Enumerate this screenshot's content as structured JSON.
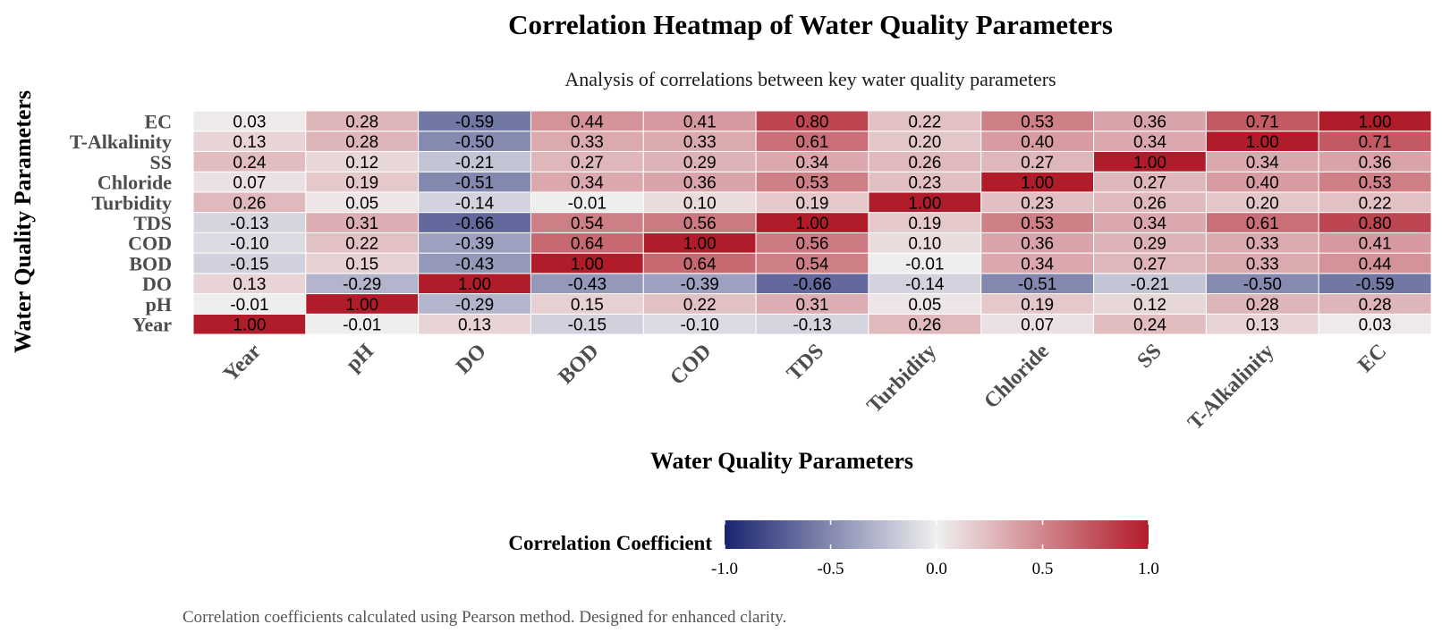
{
  "chart_data": {
    "type": "heatmap",
    "title": "Correlation Heatmap of Water Quality Parameters",
    "subtitle": "Analysis of correlations between key water quality parameters",
    "xlabel": "Water Quality Parameters",
    "ylabel": "Water Quality Parameters",
    "caption": "Correlation coefficients calculated using Pearson method. Designed for enhanced clarity.",
    "x_categories": [
      "Year",
      "pH",
      "DO",
      "BOD",
      "COD",
      "TDS",
      "Turbidity",
      "Chloride",
      "SS",
      "T-Alkalinity",
      "EC"
    ],
    "y_categories": [
      "Year",
      "pH",
      "DO",
      "BOD",
      "COD",
      "TDS",
      "Turbidity",
      "Chloride",
      "SS",
      "T-Alkalinity",
      "EC"
    ],
    "matrix": [
      [
        1.0,
        -0.01,
        0.13,
        -0.15,
        -0.1,
        -0.13,
        0.26,
        0.07,
        0.24,
        0.13,
        0.03
      ],
      [
        -0.01,
        1.0,
        -0.29,
        0.15,
        0.22,
        0.31,
        0.05,
        0.19,
        0.12,
        0.28,
        0.28
      ],
      [
        0.13,
        -0.29,
        1.0,
        -0.43,
        -0.39,
        -0.66,
        -0.14,
        -0.51,
        -0.21,
        -0.5,
        -0.59
      ],
      [
        -0.15,
        0.15,
        -0.43,
        1.0,
        0.64,
        0.54,
        -0.01,
        0.34,
        0.27,
        0.33,
        0.44
      ],
      [
        -0.1,
        0.22,
        -0.39,
        0.64,
        1.0,
        0.56,
        0.1,
        0.36,
        0.29,
        0.33,
        0.41
      ],
      [
        -0.13,
        0.31,
        -0.66,
        0.54,
        0.56,
        1.0,
        0.19,
        0.53,
        0.34,
        0.61,
        0.8
      ],
      [
        0.26,
        0.05,
        -0.14,
        -0.01,
        0.1,
        0.19,
        1.0,
        0.23,
        0.26,
        0.2,
        0.22
      ],
      [
        0.07,
        0.19,
        -0.51,
        0.34,
        0.36,
        0.53,
        0.23,
        1.0,
        0.27,
        0.4,
        0.53
      ],
      [
        0.24,
        0.12,
        -0.21,
        0.27,
        0.29,
        0.34,
        0.26,
        0.27,
        1.0,
        0.34,
        0.36
      ],
      [
        0.13,
        0.28,
        -0.5,
        0.33,
        0.33,
        0.61,
        0.2,
        0.4,
        0.34,
        1.0,
        0.71
      ],
      [
        0.03,
        0.28,
        -0.59,
        0.44,
        0.41,
        0.8,
        0.22,
        0.53,
        0.36,
        0.71,
        1.0
      ]
    ],
    "legend": {
      "title": "Correlation Coefficient",
      "range": [
        -1.0,
        1.0
      ],
      "ticks": [
        -1.0,
        -0.5,
        0.0,
        0.5,
        1.0
      ],
      "tick_labels": [
        "-1.0",
        "-0.5",
        "0.0",
        "0.5",
        "1.0"
      ],
      "placement": "bottom"
    },
    "colors": {
      "low": "#1a2470",
      "mid": "#f0f0f0",
      "high": "#b11c2a"
    }
  }
}
